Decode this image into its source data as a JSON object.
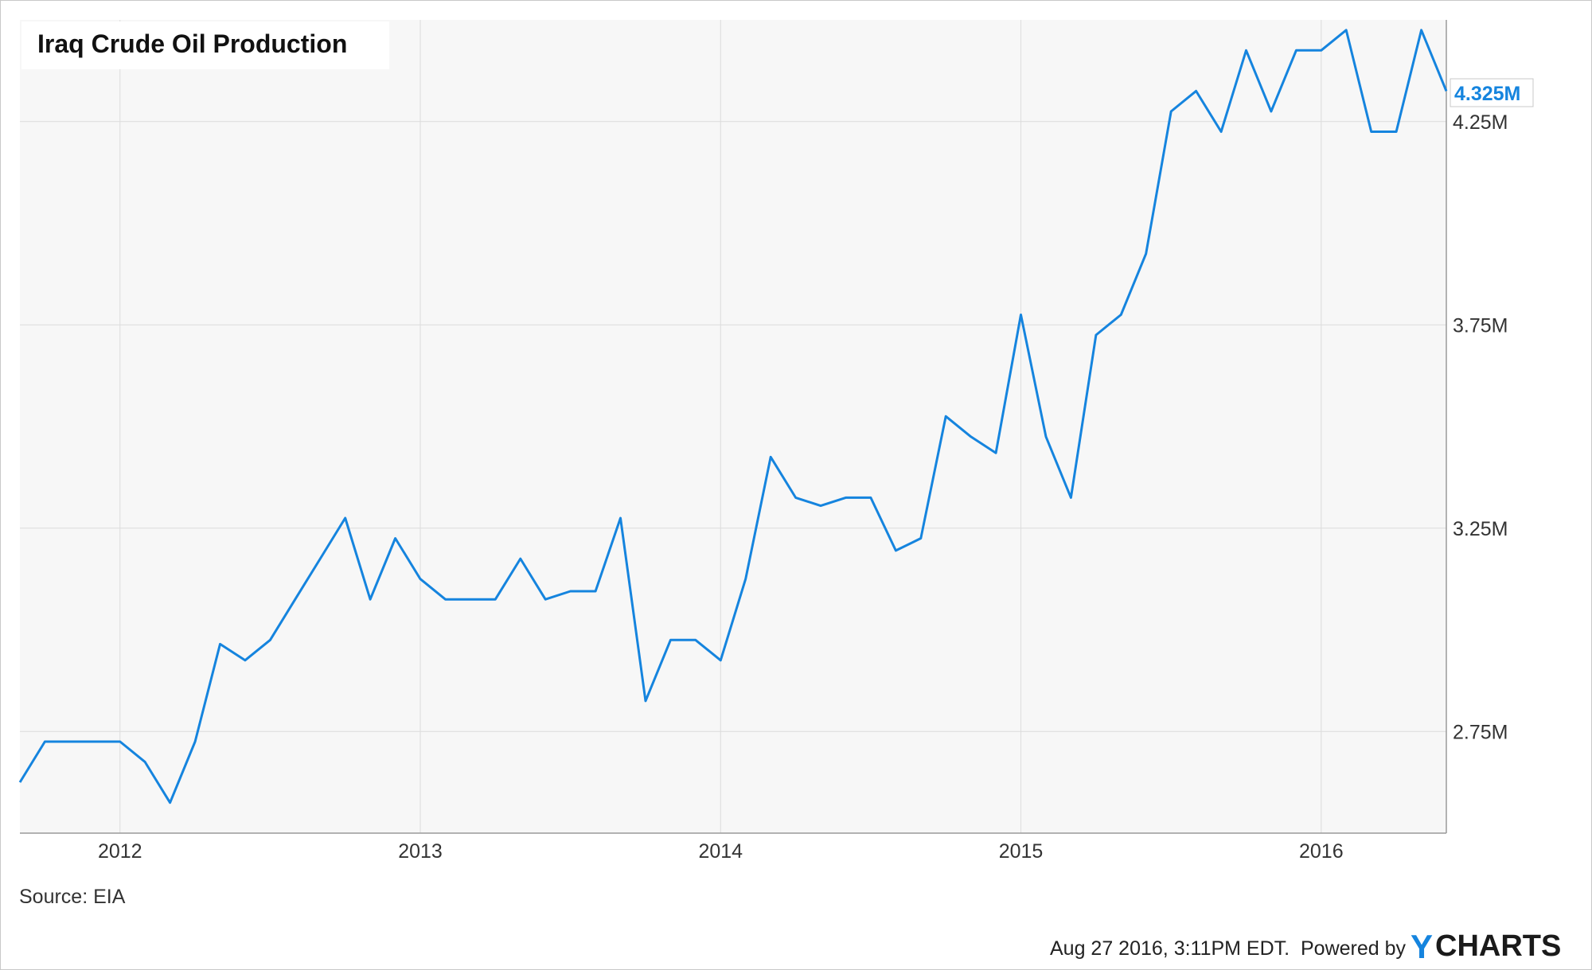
{
  "chart_data": {
    "type": "line",
    "title": "Iraq Crude Oil Production",
    "source": "Source: EIA",
    "x_tick_labels": [
      "2012",
      "2013",
      "2014",
      "2015",
      "2016"
    ],
    "y_tick_labels": [
      "2.75M",
      "3.25M",
      "3.75M",
      "4.25M"
    ],
    "y_ticks": [
      2750000,
      3250000,
      3750000,
      4250000
    ],
    "ylim": [
      2500000,
      4500000
    ],
    "xlim": [
      "2011-09",
      "2016-06"
    ],
    "grid": true,
    "last_value_label": "4.325M",
    "x": [
      "2011-09",
      "2011-10",
      "2011-11",
      "2011-12",
      "2012-01",
      "2012-02",
      "2012-03",
      "2012-04",
      "2012-05",
      "2012-06",
      "2012-07",
      "2012-08",
      "2012-09",
      "2012-10",
      "2012-11",
      "2012-12",
      "2013-01",
      "2013-02",
      "2013-03",
      "2013-04",
      "2013-05",
      "2013-06",
      "2013-07",
      "2013-08",
      "2013-09",
      "2013-10",
      "2013-11",
      "2013-12",
      "2014-01",
      "2014-02",
      "2014-03",
      "2014-04",
      "2014-05",
      "2014-06",
      "2014-07",
      "2014-08",
      "2014-09",
      "2014-10",
      "2014-11",
      "2014-12",
      "2015-01",
      "2015-02",
      "2015-03",
      "2015-04",
      "2015-05",
      "2015-06",
      "2015-07",
      "2015-08",
      "2015-09",
      "2015-10",
      "2015-11",
      "2015-12",
      "2016-01",
      "2016-02",
      "2016-03",
      "2016-04",
      "2016-05",
      "2016-06"
    ],
    "series": [
      {
        "values": [
          2625000,
          2725000,
          2725000,
          2725000,
          2725000,
          2675000,
          2575000,
          2725000,
          2965000,
          2925000,
          2975000,
          3075000,
          3175000,
          3275000,
          3075000,
          3225000,
          3125000,
          3075000,
          3075000,
          3075000,
          3175000,
          3075000,
          3095000,
          3095000,
          3275000,
          2825000,
          2975000,
          2975000,
          2925000,
          3125000,
          3425000,
          3325000,
          3305000,
          3325000,
          3325000,
          3195000,
          3225000,
          3525000,
          3475000,
          3435000,
          3775000,
          3475000,
          3325000,
          3725000,
          3775000,
          3925000,
          4275000,
          4325000,
          4225000,
          4425000,
          4275000,
          4425000,
          4425000,
          4475000,
          4225000,
          4225000,
          4475000,
          4325000
        ]
      }
    ],
    "colors": {
      "line": "#1584de",
      "grid": "#dcdcdc",
      "plot_background": "#f7f7f7",
      "brand_y": "#1584de"
    }
  },
  "footer": {
    "timestamp": "Aug 27 2016, 3:11PM EDT.",
    "powered_by": "Powered by",
    "brand_y": "Y",
    "brand_rest": "CHARTS"
  }
}
